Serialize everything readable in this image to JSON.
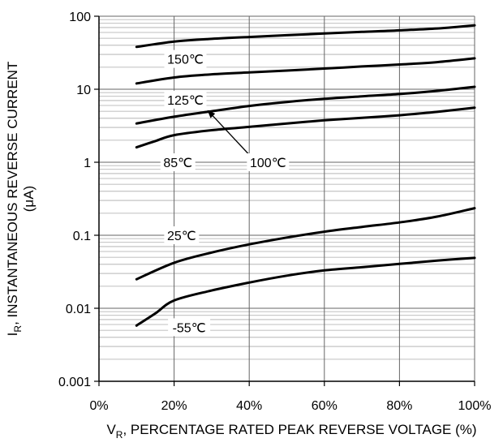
{
  "chart_data": {
    "type": "line",
    "x_scale": "linear",
    "y_scale": "log",
    "xlim": [
      0,
      100
    ],
    "ylim": [
      0.001,
      100
    ],
    "grid": true,
    "legend": "none",
    "x_tick_labels": [
      "0%",
      "20%",
      "40%",
      "60%",
      "80%",
      "100%"
    ],
    "x_tick_values": [
      0,
      20,
      40,
      60,
      80,
      100
    ],
    "y_tick_labels": [
      "100",
      "10",
      "1",
      "0.1",
      "0.01",
      "0.001"
    ],
    "y_tick_values": [
      100,
      10,
      1,
      0.1,
      0.01,
      0.001
    ],
    "xlabel": {
      "main": "V",
      "sub": "R",
      "rest": ", PERCENTAGE RATED PEAK REVERSE VOLTAGE (%)"
    },
    "ylabel": {
      "main": "I",
      "sub": "R",
      "rest": ", INSTANTANEOUS REVERSE CURRENT",
      "line2": "(μA)"
    },
    "series": [
      {
        "name": "150℃",
        "x": [
          10,
          20,
          30,
          40,
          50,
          60,
          70,
          80,
          90,
          100
        ],
        "y": [
          38,
          45,
          49,
          52,
          55,
          58,
          61,
          64,
          68,
          75
        ]
      },
      {
        "name": "125℃",
        "x": [
          10,
          20,
          30,
          40,
          50,
          60,
          70,
          80,
          90,
          100
        ],
        "y": [
          12,
          14.5,
          16,
          17,
          18,
          19.2,
          20.5,
          21.8,
          23.5,
          26.5
        ]
      },
      {
        "name": "100℃",
        "x": [
          10,
          20,
          30,
          40,
          50,
          60,
          70,
          80,
          90,
          100
        ],
        "y": [
          3.4,
          4.2,
          5.0,
          5.9,
          6.7,
          7.4,
          8.0,
          8.6,
          9.5,
          10.8
        ]
      },
      {
        "name": "85℃",
        "x": [
          10,
          15,
          20,
          30,
          40,
          50,
          60,
          70,
          80,
          90,
          100
        ],
        "y": [
          1.6,
          1.95,
          2.35,
          2.75,
          3.05,
          3.4,
          3.75,
          4.05,
          4.4,
          4.9,
          5.6
        ]
      },
      {
        "name": "25℃",
        "x": [
          10,
          20,
          30,
          40,
          50,
          60,
          70,
          80,
          90,
          100
        ],
        "y": [
          0.025,
          0.042,
          0.058,
          0.075,
          0.093,
          0.112,
          0.13,
          0.15,
          0.18,
          0.235
        ]
      },
      {
        "name": "-55℃",
        "x": [
          10,
          15,
          20,
          30,
          40,
          50,
          60,
          70,
          80,
          90,
          100
        ],
        "y": [
          0.0058,
          0.0085,
          0.0128,
          0.0175,
          0.0225,
          0.028,
          0.033,
          0.0365,
          0.0405,
          0.045,
          0.049
        ]
      }
    ],
    "annotations": [
      {
        "text": "150℃",
        "series": "150℃",
        "x": 23,
        "y": 26
      },
      {
        "text": "125℃",
        "series": "125℃",
        "x": 23,
        "y": 7.2
      },
      {
        "text": "100℃",
        "series": "100℃",
        "x": 45,
        "y": 1.0,
        "arrow_to": {
          "x": 29,
          "y": 5.1
        }
      },
      {
        "text": "85℃",
        "series": "85℃",
        "x": 21,
        "y": 1.0
      },
      {
        "text": "25℃",
        "series": "25℃",
        "x": 22,
        "y": 0.1
      },
      {
        "text": "-55℃",
        "series": "-55℃",
        "x": 24,
        "y": 0.0055
      }
    ],
    "colors": {
      "line": "#000000",
      "grid": "#aaaaaa",
      "label_bg": "#ffffff"
    }
  }
}
